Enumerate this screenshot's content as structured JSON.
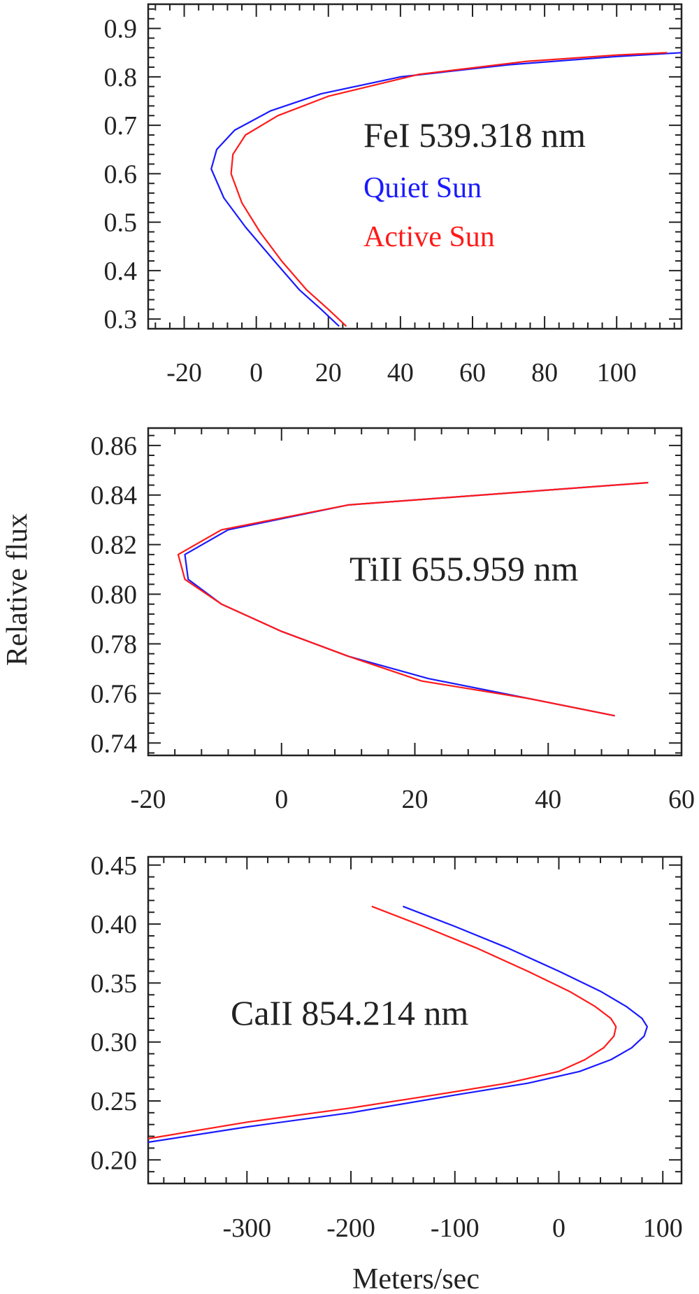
{
  "figure": {
    "ylabel": "Relative flux",
    "xlabel": "Meters/sec",
    "colors": {
      "quiet": "#1a1aff",
      "active": "#ff1a1a",
      "text": "#222222",
      "axis": "#222222"
    }
  },
  "chart_data": [
    {
      "type": "line",
      "title": "FeI 539.318 nm",
      "xlabel": "",
      "ylabel": "Relative flux",
      "xlim": [
        -30,
        118
      ],
      "ylim": [
        0.28,
        0.95
      ],
      "xticks": [
        -20,
        0,
        20,
        40,
        60,
        80,
        100
      ],
      "yticks": [
        0.3,
        0.4,
        0.5,
        0.6,
        0.7,
        0.8,
        0.9
      ],
      "annotation": "FeI 539.318 nm",
      "legend": [
        {
          "label": "Quiet Sun",
          "color": "#1a1aff"
        },
        {
          "label": "Active Sun",
          "color": "#ff1a1a"
        }
      ],
      "series": [
        {
          "name": "Quiet Sun",
          "color": "#1a1aff",
          "x": [
            23,
            18,
            12,
            5,
            -3,
            -9,
            -12.5,
            -11,
            -6,
            4,
            18,
            40,
            70,
            100,
            118
          ],
          "y": [
            0.285,
            0.32,
            0.36,
            0.42,
            0.49,
            0.55,
            0.61,
            0.65,
            0.69,
            0.73,
            0.765,
            0.8,
            0.825,
            0.842,
            0.85
          ]
        },
        {
          "name": "Active Sun",
          "color": "#ff1a1a",
          "x": [
            25,
            20,
            14,
            7,
            1,
            -4,
            -7,
            -6.5,
            -3,
            6,
            20,
            45,
            75,
            100,
            114
          ],
          "y": [
            0.285,
            0.32,
            0.36,
            0.42,
            0.48,
            0.54,
            0.6,
            0.64,
            0.68,
            0.72,
            0.76,
            0.805,
            0.832,
            0.845,
            0.85
          ]
        }
      ]
    },
    {
      "type": "line",
      "title": "TiII 655.959 nm",
      "xlabel": "",
      "ylabel": "Relative flux",
      "xlim": [
        -20,
        60
      ],
      "ylim": [
        0.735,
        0.867
      ],
      "xticks": [
        -20,
        0,
        20,
        40,
        60
      ],
      "yticks": [
        0.74,
        0.76,
        0.78,
        0.8,
        0.82,
        0.84,
        0.86
      ],
      "annotation": "TiII 655.959 nm",
      "series": [
        {
          "name": "Quiet Sun",
          "color": "#1a1aff",
          "x": [
            50,
            37,
            22,
            10,
            0,
            -9,
            -14,
            -14.5,
            -8,
            10,
            55
          ],
          "y": [
            0.751,
            0.758,
            0.766,
            0.775,
            0.785,
            0.796,
            0.806,
            0.816,
            0.826,
            0.836,
            0.845
          ]
        },
        {
          "name": "Active Sun",
          "color": "#ff1a1a",
          "x": [
            50,
            37,
            21,
            10,
            0,
            -9,
            -14.5,
            -15.5,
            -9,
            10,
            55
          ],
          "y": [
            0.751,
            0.758,
            0.765,
            0.775,
            0.785,
            0.796,
            0.806,
            0.816,
            0.826,
            0.836,
            0.845
          ]
        }
      ]
    },
    {
      "type": "line",
      "title": "CaII 854.214 nm",
      "xlabel": "Meters/sec",
      "ylabel": "Relative flux",
      "xlim": [
        -395,
        118
      ],
      "ylim": [
        0.18,
        0.457
      ],
      "xticks": [
        -300,
        -200,
        -100,
        0,
        100
      ],
      "yticks": [
        0.2,
        0.25,
        0.3,
        0.35,
        0.4,
        0.45
      ],
      "annotation": "CaII 854.214 nm",
      "series": [
        {
          "name": "Quiet Sun",
          "color": "#1a1aff",
          "x": [
            -150,
            -100,
            -50,
            0,
            40,
            65,
            80,
            85,
            82,
            70,
            50,
            20,
            -30,
            -100,
            -200,
            -300,
            -395
          ],
          "y": [
            0.415,
            0.398,
            0.38,
            0.36,
            0.343,
            0.33,
            0.32,
            0.313,
            0.305,
            0.295,
            0.285,
            0.275,
            0.265,
            0.255,
            0.24,
            0.228,
            0.215
          ]
        },
        {
          "name": "Active Sun",
          "color": "#ff1a1a",
          "x": [
            -180,
            -130,
            -80,
            -30,
            10,
            35,
            50,
            55,
            53,
            43,
            25,
            0,
            -50,
            -120,
            -200,
            -300,
            -395
          ],
          "y": [
            0.415,
            0.398,
            0.38,
            0.36,
            0.343,
            0.33,
            0.32,
            0.313,
            0.305,
            0.295,
            0.285,
            0.275,
            0.265,
            0.255,
            0.244,
            0.232,
            0.218
          ]
        }
      ]
    }
  ]
}
